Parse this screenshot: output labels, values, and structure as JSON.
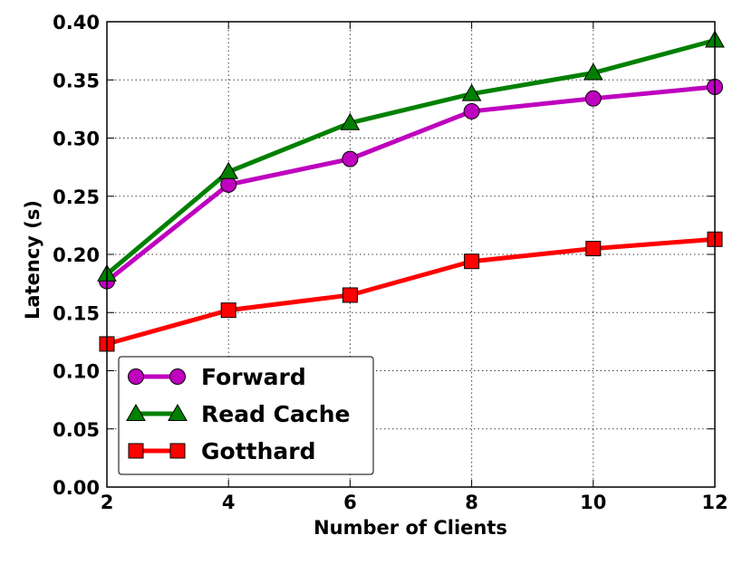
{
  "chart_data": {
    "type": "line",
    "xlabel": "Number of Clients",
    "ylabel": "Latency (s)",
    "x": [
      2,
      4,
      6,
      8,
      10,
      12
    ],
    "xlim": [
      2,
      12
    ],
    "ylim": [
      0,
      0.4
    ],
    "xticks": [
      "2",
      "4",
      "6",
      "8",
      "10",
      "12"
    ],
    "yticks": [
      "0.00",
      "0.05",
      "0.10",
      "0.15",
      "0.20",
      "0.25",
      "0.30",
      "0.35",
      "0.40"
    ],
    "grid": true,
    "legend_position": "bottom-left",
    "series": [
      {
        "name": "Forward",
        "color": "#bf00bf",
        "marker": "circle",
        "values": [
          0.177,
          0.26,
          0.282,
          0.323,
          0.334,
          0.344
        ]
      },
      {
        "name": "Read Cache",
        "color": "#008000",
        "marker": "triangle",
        "values": [
          0.183,
          0.271,
          0.313,
          0.338,
          0.356,
          0.384
        ]
      },
      {
        "name": "Gotthard",
        "color": "#ff0000",
        "marker": "square",
        "values": [
          0.123,
          0.152,
          0.165,
          0.194,
          0.205,
          0.213
        ]
      }
    ]
  }
}
